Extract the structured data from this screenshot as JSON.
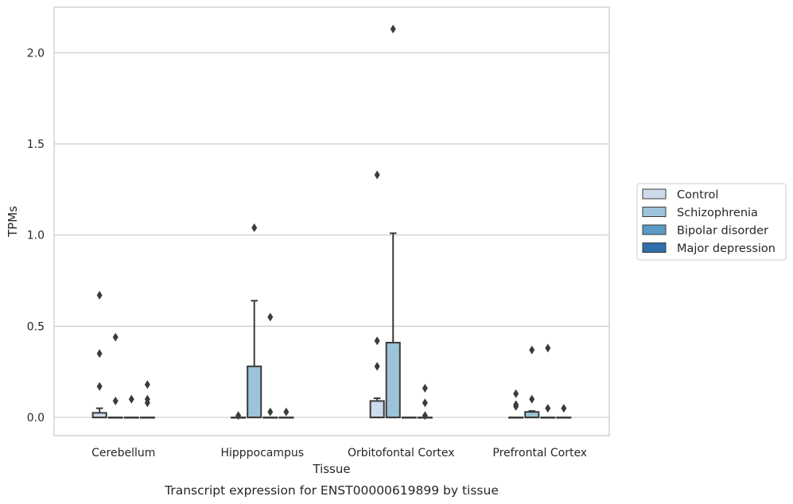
{
  "chart_data": {
    "type": "box",
    "xlabel": "Tissue",
    "ylabel": "TPMs",
    "caption": "Transcript expression for ENST00000619899 by tissue",
    "ylim": [
      -0.1,
      2.25
    ],
    "yticks": [
      0.0,
      0.5,
      1.0,
      1.5,
      2.0
    ],
    "ytick_labels": [
      "0.0",
      "0.5",
      "1.0",
      "1.5",
      "2.0"
    ],
    "grid": "horizontal",
    "legend_position": "right",
    "categories": [
      "Cerebellum",
      "Hipppocampus",
      "Orbitofontal Cortex",
      "Prefrontal Cortex"
    ],
    "series": [
      {
        "name": "Control",
        "color": "#cddbeb",
        "boxes": [
          {
            "q1": 0.0,
            "median": 0.0,
            "q3": 0.025,
            "whisker_low": 0.0,
            "whisker_high": 0.05,
            "outliers": [
              0.17,
              0.35,
              0.67
            ]
          },
          {
            "q1": 0.0,
            "median": 0.0,
            "q3": 0.0,
            "whisker_low": 0.0,
            "whisker_high": 0.0,
            "outliers": [
              0.01
            ]
          },
          {
            "q1": 0.0,
            "median": 0.0,
            "q3": 0.09,
            "whisker_low": 0.0,
            "whisker_high": 0.105,
            "outliers": [
              0.28,
              0.42,
              1.33
            ]
          },
          {
            "q1": 0.0,
            "median": 0.0,
            "q3": 0.0,
            "whisker_low": 0.0,
            "whisker_high": 0.0,
            "outliers": [
              0.06,
              0.07,
              0.13
            ]
          }
        ]
      },
      {
        "name": "Schizophrenia",
        "color": "#9cc3da",
        "boxes": [
          {
            "q1": 0.0,
            "median": 0.0,
            "q3": 0.0,
            "whisker_low": 0.0,
            "whisker_high": 0.0,
            "outliers": [
              0.09,
              0.44
            ]
          },
          {
            "q1": 0.0,
            "median": 0.0,
            "q3": 0.28,
            "whisker_low": 0.0,
            "whisker_high": 0.64,
            "outliers": [
              1.04
            ]
          },
          {
            "q1": 0.0,
            "median": 0.0,
            "q3": 0.41,
            "whisker_low": 0.0,
            "whisker_high": 1.01,
            "outliers": [
              2.13
            ]
          },
          {
            "q1": 0.0,
            "median": 0.0,
            "q3": 0.03,
            "whisker_low": 0.0,
            "whisker_high": 0.035,
            "outliers": [
              0.1,
              0.37
            ]
          }
        ]
      },
      {
        "name": "Bipolar disorder",
        "color": "#5a9ac6",
        "boxes": [
          {
            "q1": 0.0,
            "median": 0.0,
            "q3": 0.0,
            "whisker_low": 0.0,
            "whisker_high": 0.0,
            "outliers": [
              0.1
            ]
          },
          {
            "q1": 0.0,
            "median": 0.0,
            "q3": 0.0,
            "whisker_low": 0.0,
            "whisker_high": 0.0,
            "outliers": [
              0.03,
              0.55
            ]
          },
          {
            "q1": 0.0,
            "median": 0.0,
            "q3": 0.0,
            "whisker_low": 0.0,
            "whisker_high": 0.0,
            "outliers": []
          },
          {
            "q1": 0.0,
            "median": 0.0,
            "q3": 0.0,
            "whisker_low": 0.0,
            "whisker_high": 0.0,
            "outliers": [
              0.05,
              0.38
            ]
          }
        ]
      },
      {
        "name": "Major depression",
        "color": "#2f6ea8",
        "boxes": [
          {
            "q1": 0.0,
            "median": 0.0,
            "q3": 0.0,
            "whisker_low": 0.0,
            "whisker_high": 0.0,
            "outliers": [
              0.08,
              0.1,
              0.18
            ]
          },
          {
            "q1": 0.0,
            "median": 0.0,
            "q3": 0.0,
            "whisker_low": 0.0,
            "whisker_high": 0.0,
            "outliers": [
              0.03
            ]
          },
          {
            "q1": 0.0,
            "median": 0.0,
            "q3": 0.0,
            "whisker_low": 0.0,
            "whisker_high": 0.0,
            "outliers": [
              0.01,
              0.08,
              0.16
            ]
          },
          {
            "q1": 0.0,
            "median": 0.0,
            "q3": 0.0,
            "whisker_low": 0.0,
            "whisker_high": 0.0,
            "outliers": [
              0.05
            ]
          }
        ]
      }
    ]
  }
}
